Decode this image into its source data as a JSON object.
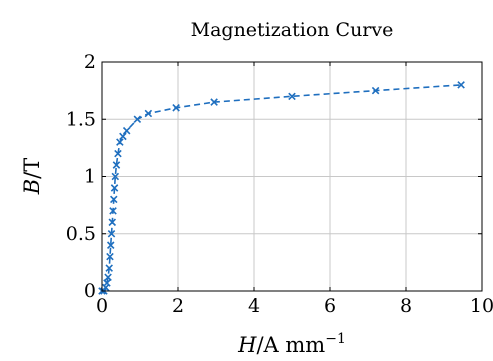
{
  "chart_data": {
    "type": "line",
    "title": "Magnetization Curve",
    "xlabel": {
      "symbol": "H",
      "unit_prefix": "/A mm",
      "unit_exponent": "−1"
    },
    "ylabel": {
      "symbol": "B",
      "unit": "/T"
    },
    "xlim": [
      0,
      10
    ],
    "ylim": [
      0,
      2
    ],
    "xticks": [
      0,
      2,
      4,
      6,
      8,
      10
    ],
    "yticks": [
      0,
      0.5,
      1,
      1.5,
      2
    ],
    "xtick_labels": [
      "0",
      "2",
      "4",
      "6",
      "8",
      "10"
    ],
    "ytick_labels": [
      "0",
      "0.5",
      "1",
      "1.5",
      "2"
    ],
    "grid": true,
    "series": [
      {
        "color": "#1f6fbf",
        "marker": "x",
        "line_style": "dashed",
        "x": [
          0,
          0.05,
          0.1,
          0.13,
          0.16,
          0.19,
          0.21,
          0.23,
          0.25,
          0.27,
          0.29,
          0.31,
          0.33,
          0.35,
          0.38,
          0.42,
          0.47,
          0.55,
          0.65,
          0.93,
          1.22,
          1.95,
          2.95,
          5.0,
          7.2,
          9.45
        ],
        "y": [
          0,
          0.0,
          0.03,
          0.07,
          0.12,
          0.2,
          0.3,
          0.4,
          0.5,
          0.6,
          0.7,
          0.8,
          0.9,
          1.0,
          1.1,
          1.2,
          1.3,
          1.35,
          1.4,
          1.5,
          1.55,
          1.6,
          1.65,
          1.7,
          1.75,
          1.8
        ]
      }
    ]
  }
}
